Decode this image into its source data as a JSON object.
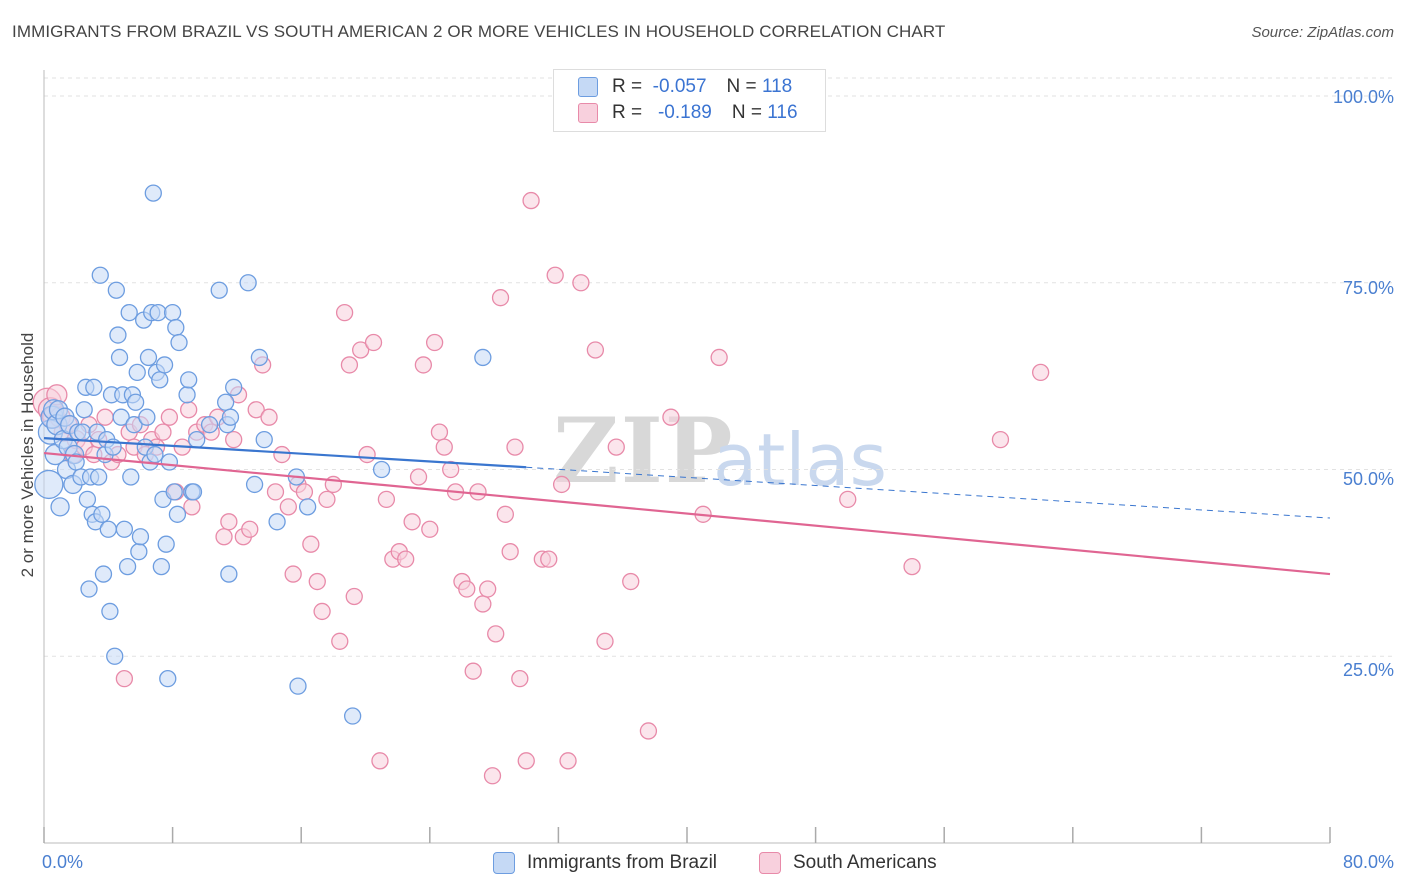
{
  "header": {
    "title": "IMMIGRANTS FROM BRAZIL VS SOUTH AMERICAN 2 OR MORE VEHICLES IN HOUSEHOLD CORRELATION CHART",
    "source": "Source: ZipAtlas.com"
  },
  "watermark": {
    "zip": "ZIP",
    "atlas": "atlas"
  },
  "legend": {
    "r_label": "R =",
    "n_label": "N =",
    "rows": [
      {
        "r": "-0.057",
        "n": "118"
      },
      {
        "r": "-0.189",
        "n": "116"
      }
    ]
  },
  "colors": {
    "brazil_fill": "#c5d9f5",
    "brazil_stroke": "#6d9de0",
    "brazil_line": "#3a76cf",
    "south_fill": "#f8d0dd",
    "south_stroke": "#e88aa9",
    "south_line": "#e06592",
    "axis_tick_text": "#4a7fd0",
    "grid": "#e2e2e2"
  },
  "chart_data": {
    "type": "scatter",
    "title": "IMMIGRANTS FROM BRAZIL VS SOUTH AMERICAN 2 OR MORE VEHICLES IN HOUSEHOLD CORRELATION CHART",
    "xlabel": "",
    "ylabel": "2 or more Vehicles in Household",
    "xlim": [
      0,
      80
    ],
    "ylim": [
      0,
      102
    ],
    "x_tick_labels": [
      "0.0%",
      "80.0%"
    ],
    "y_tick_values": [
      25,
      50,
      75,
      100
    ],
    "y_tick_labels": [
      "25.0%",
      "50.0%",
      "75.0%",
      "100.0%"
    ],
    "grid": true,
    "legend_placement": "top-center",
    "series": [
      {
        "name": "Immigrants from Brazil",
        "r": -0.057,
        "n": 118,
        "trend": {
          "x0": 0,
          "y0": 54.2,
          "x1": 30,
          "y1": 50.3,
          "dashed_to_x": 80,
          "dashed_to_y": 43.5
        },
        "points": [
          [
            0.3,
            48,
            14
          ],
          [
            0.4,
            55,
            12
          ],
          [
            0.5,
            57,
            11
          ],
          [
            0.6,
            58,
            10
          ],
          [
            0.7,
            52,
            10
          ],
          [
            0.8,
            56,
            10
          ],
          [
            0.9,
            58,
            9
          ],
          [
            1.0,
            45,
            9
          ],
          [
            1.2,
            54,
            9
          ],
          [
            1.3,
            57,
            9
          ],
          [
            1.4,
            50,
            9
          ],
          [
            1.5,
            53,
            9
          ],
          [
            1.6,
            56,
            9
          ],
          [
            1.8,
            48,
            9
          ],
          [
            1.9,
            52,
            9
          ],
          [
            2.0,
            51,
            8
          ],
          [
            2.1,
            55,
            8
          ],
          [
            2.3,
            49,
            8
          ],
          [
            2.4,
            55,
            8
          ],
          [
            2.5,
            58,
            8
          ],
          [
            2.6,
            61,
            8
          ],
          [
            2.7,
            46,
            8
          ],
          [
            2.8,
            34,
            8
          ],
          [
            2.9,
            49,
            8
          ],
          [
            3.0,
            44,
            8
          ],
          [
            3.1,
            61,
            8
          ],
          [
            3.2,
            43,
            8
          ],
          [
            3.3,
            55,
            8
          ],
          [
            3.4,
            49,
            8
          ],
          [
            3.5,
            76,
            8
          ],
          [
            3.6,
            44,
            8
          ],
          [
            3.7,
            36,
            8
          ],
          [
            3.8,
            52,
            8
          ],
          [
            3.9,
            54,
            8
          ],
          [
            4.0,
            42,
            8
          ],
          [
            4.1,
            31,
            8
          ],
          [
            4.2,
            60,
            8
          ],
          [
            4.3,
            53,
            8
          ],
          [
            4.4,
            25,
            8
          ],
          [
            4.5,
            74,
            8
          ],
          [
            4.6,
            68,
            8
          ],
          [
            4.7,
            65,
            8
          ],
          [
            4.8,
            57,
            8
          ],
          [
            4.9,
            60,
            8
          ],
          [
            5.0,
            42,
            8
          ],
          [
            5.2,
            37,
            8
          ],
          [
            5.3,
            71,
            8
          ],
          [
            5.4,
            49,
            8
          ],
          [
            5.5,
            60,
            8
          ],
          [
            5.6,
            56,
            8
          ],
          [
            5.7,
            59,
            8
          ],
          [
            5.8,
            63,
            8
          ],
          [
            5.9,
            39,
            8
          ],
          [
            6.0,
            41,
            8
          ],
          [
            6.2,
            70,
            8
          ],
          [
            6.3,
            53,
            8
          ],
          [
            6.4,
            57,
            8
          ],
          [
            6.5,
            65,
            8
          ],
          [
            6.6,
            51,
            8
          ],
          [
            6.7,
            71,
            8
          ],
          [
            6.8,
            87,
            8
          ],
          [
            6.9,
            52,
            8
          ],
          [
            7.0,
            63,
            8
          ],
          [
            7.1,
            71,
            8
          ],
          [
            7.2,
            62,
            8
          ],
          [
            7.3,
            37,
            8
          ],
          [
            7.4,
            46,
            8
          ],
          [
            7.5,
            64,
            8
          ],
          [
            7.6,
            40,
            8
          ],
          [
            7.7,
            22,
            8
          ],
          [
            7.8,
            51,
            8
          ],
          [
            8.0,
            71,
            8
          ],
          [
            8.1,
            47,
            8
          ],
          [
            8.2,
            69,
            8
          ],
          [
            8.3,
            44,
            8
          ],
          [
            8.4,
            67,
            8
          ],
          [
            8.9,
            60,
            8
          ],
          [
            9.0,
            62,
            8
          ],
          [
            9.2,
            47,
            8
          ],
          [
            9.3,
            47,
            8
          ],
          [
            9.5,
            54,
            8
          ],
          [
            10.3,
            56,
            8
          ],
          [
            10.9,
            74,
            8
          ],
          [
            11.3,
            59,
            8
          ],
          [
            11.4,
            56,
            8
          ],
          [
            11.5,
            36,
            8
          ],
          [
            11.6,
            57,
            8
          ],
          [
            11.8,
            61,
            8
          ],
          [
            12.7,
            75,
            8
          ],
          [
            13.1,
            48,
            8
          ],
          [
            13.4,
            65,
            8
          ],
          [
            13.7,
            54,
            8
          ],
          [
            14.5,
            43,
            8
          ],
          [
            15.7,
            49,
            8
          ],
          [
            15.8,
            21,
            8
          ],
          [
            16.4,
            45,
            8
          ],
          [
            19.2,
            17,
            8
          ],
          [
            21.0,
            50,
            8
          ],
          [
            27.3,
            65,
            8
          ]
        ]
      },
      {
        "name": "South Americans",
        "r": -0.189,
        "n": 116,
        "trend": {
          "x0": 0,
          "y0": 52.2,
          "x1": 80,
          "y1": 36.0
        },
        "points": [
          [
            0.2,
            59,
            14
          ],
          [
            0.4,
            58,
            12
          ],
          [
            0.6,
            57,
            11
          ],
          [
            0.8,
            60,
            10
          ],
          [
            1.0,
            57,
            10
          ],
          [
            1.2,
            55,
            9
          ],
          [
            1.5,
            56,
            9
          ],
          [
            1.8,
            52,
            9
          ],
          [
            2.0,
            54,
            9
          ],
          [
            2.5,
            53,
            8
          ],
          [
            2.8,
            56,
            8
          ],
          [
            3.1,
            52,
            8
          ],
          [
            3.4,
            54,
            8
          ],
          [
            3.8,
            57,
            8
          ],
          [
            4.2,
            51,
            8
          ],
          [
            4.6,
            52,
            8
          ],
          [
            5.0,
            22,
            8
          ],
          [
            5.3,
            55,
            8
          ],
          [
            5.6,
            53,
            8
          ],
          [
            6.0,
            56,
            8
          ],
          [
            6.3,
            52,
            8
          ],
          [
            6.7,
            54,
            8
          ],
          [
            7.0,
            53,
            8
          ],
          [
            7.4,
            55,
            8
          ],
          [
            7.8,
            57,
            8
          ],
          [
            8.2,
            47,
            8
          ],
          [
            8.6,
            53,
            8
          ],
          [
            9.0,
            58,
            8
          ],
          [
            9.2,
            45,
            8
          ],
          [
            9.5,
            55,
            8
          ],
          [
            10.0,
            56,
            8
          ],
          [
            10.4,
            55,
            8
          ],
          [
            10.8,
            57,
            8
          ],
          [
            11.2,
            41,
            8
          ],
          [
            11.5,
            43,
            8
          ],
          [
            11.8,
            54,
            8
          ],
          [
            12.1,
            60,
            8
          ],
          [
            12.4,
            41,
            8
          ],
          [
            12.8,
            42,
            8
          ],
          [
            13.2,
            58,
            8
          ],
          [
            13.6,
            64,
            8
          ],
          [
            14.0,
            57,
            8
          ],
          [
            14.4,
            47,
            8
          ],
          [
            14.8,
            52,
            8
          ],
          [
            15.2,
            45,
            8
          ],
          [
            15.5,
            36,
            8
          ],
          [
            15.8,
            48,
            8
          ],
          [
            16.2,
            47,
            8
          ],
          [
            16.6,
            40,
            8
          ],
          [
            17.0,
            35,
            8
          ],
          [
            17.3,
            31,
            8
          ],
          [
            17.6,
            46,
            8
          ],
          [
            18.0,
            48,
            8
          ],
          [
            18.4,
            27,
            8
          ],
          [
            18.7,
            71,
            8
          ],
          [
            19.0,
            64,
            8
          ],
          [
            19.3,
            33,
            8
          ],
          [
            19.7,
            66,
            8
          ],
          [
            20.1,
            52,
            8
          ],
          [
            20.5,
            67,
            8
          ],
          [
            20.9,
            11,
            8
          ],
          [
            21.3,
            46,
            8
          ],
          [
            21.7,
            38,
            8
          ],
          [
            22.1,
            39,
            8
          ],
          [
            22.5,
            38,
            8
          ],
          [
            22.9,
            43,
            8
          ],
          [
            23.3,
            49,
            8
          ],
          [
            23.6,
            64,
            8
          ],
          [
            24.0,
            42,
            8
          ],
          [
            24.3,
            67,
            8
          ],
          [
            24.6,
            55,
            8
          ],
          [
            24.9,
            53,
            8
          ],
          [
            25.3,
            50,
            8
          ],
          [
            25.6,
            47,
            8
          ],
          [
            26.0,
            35,
            8
          ],
          [
            26.3,
            34,
            8
          ],
          [
            26.7,
            23,
            8
          ],
          [
            27.0,
            47,
            8
          ],
          [
            27.3,
            32,
            8
          ],
          [
            27.6,
            34,
            8
          ],
          [
            27.9,
            9,
            8
          ],
          [
            28.1,
            28,
            8
          ],
          [
            28.4,
            73,
            8
          ],
          [
            28.7,
            44,
            8
          ],
          [
            29.0,
            39,
            8
          ],
          [
            29.3,
            53,
            8
          ],
          [
            29.6,
            22,
            8
          ],
          [
            30.0,
            11,
            8
          ],
          [
            30.3,
            86,
            8
          ],
          [
            31.0,
            38,
            8
          ],
          [
            31.4,
            38,
            8
          ],
          [
            31.8,
            76,
            8
          ],
          [
            32.2,
            48,
            8
          ],
          [
            32.6,
            11,
            8
          ],
          [
            33.4,
            75,
            8
          ],
          [
            34.3,
            66,
            8
          ],
          [
            34.9,
            27,
            8
          ],
          [
            35.6,
            53,
            8
          ],
          [
            36.5,
            35,
            8
          ],
          [
            37.6,
            15,
            8
          ],
          [
            39.0,
            57,
            8
          ],
          [
            41.0,
            44,
            8
          ],
          [
            42.0,
            65,
            8
          ],
          [
            50.0,
            46,
            8
          ],
          [
            54.0,
            37,
            8
          ],
          [
            59.5,
            54,
            8
          ],
          [
            62.0,
            63,
            8
          ]
        ]
      }
    ]
  }
}
